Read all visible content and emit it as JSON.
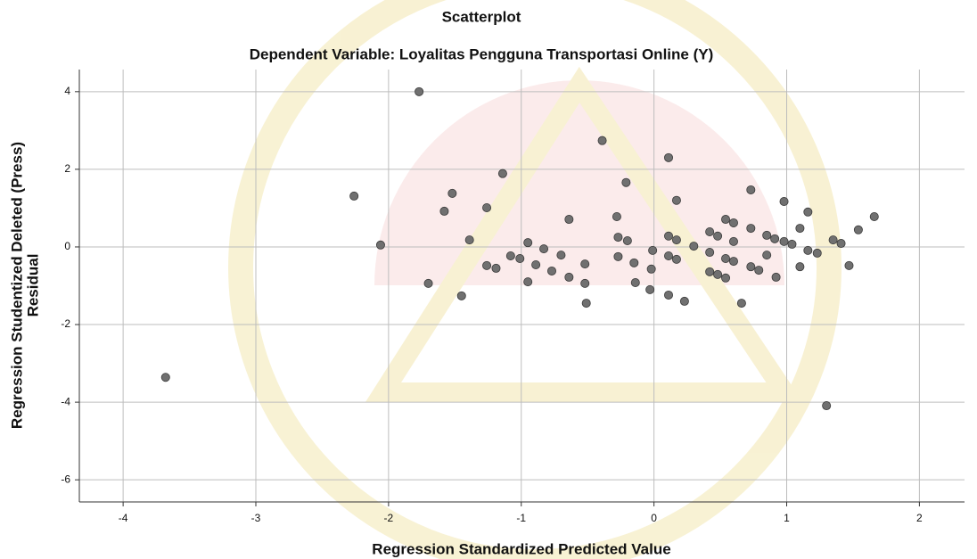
{
  "chart_data": {
    "type": "scatter",
    "title": "Scatterplot",
    "subtitle": "Dependent Variable: Loyalitas Pengguna Transportasi Online (Y)",
    "xlabel": "Regression Standardized Predicted Value",
    "ylabel_lines": [
      "Regression Studentized Deleted (Press)",
      "Residual"
    ],
    "xlim": [
      -4.33,
      2.34
    ],
    "ylim": [
      -6.57,
      4.57
    ],
    "xticks": [
      -4,
      -3,
      -2,
      -1,
      0,
      1,
      2
    ],
    "yticks": [
      4,
      2,
      0,
      -2,
      -4,
      -6
    ],
    "grid": true,
    "color": "#707070",
    "x": [
      -1.77,
      -3.68,
      -2.26,
      -2.06,
      -1.7,
      -1.58,
      -1.52,
      -1.45,
      -1.39,
      -1.26,
      -1.26,
      -1.19,
      -1.14,
      -1.08,
      -1.01,
      -0.95,
      -0.95,
      -0.89,
      -0.83,
      -0.77,
      -0.7,
      -0.64,
      -0.64,
      -0.52,
      -0.52,
      -0.51,
      -0.39,
      -0.28,
      -0.27,
      -0.27,
      -0.21,
      -0.2,
      -0.15,
      -0.14,
      -0.03,
      -0.02,
      -0.01,
      0.11,
      0.11,
      0.11,
      0.11,
      0.17,
      0.17,
      0.17,
      0.23,
      0.3,
      0.42,
      0.42,
      0.42,
      0.48,
      0.48,
      0.54,
      0.54,
      0.54,
      0.6,
      0.6,
      0.6,
      0.66,
      0.73,
      0.73,
      0.73,
      0.79,
      0.85,
      0.85,
      0.91,
      0.92,
      0.98,
      0.98,
      1.04,
      1.1,
      1.1,
      1.16,
      1.16,
      1.23,
      1.3,
      1.35,
      1.41,
      1.47,
      1.54,
      1.66
    ],
    "values": [
      4.0,
      -3.36,
      1.31,
      0.05,
      -0.94,
      0.92,
      1.38,
      -1.26,
      0.18,
      1.01,
      -0.48,
      -0.55,
      1.89,
      -0.23,
      -0.3,
      0.11,
      -0.9,
      -0.46,
      -0.05,
      -0.62,
      -0.21,
      -0.78,
      0.71,
      -0.44,
      -0.94,
      -1.45,
      2.74,
      0.78,
      0.25,
      -0.25,
      1.66,
      0.16,
      -0.41,
      -0.92,
      -1.1,
      -0.57,
      -0.09,
      2.3,
      -0.23,
      0.28,
      -1.24,
      1.2,
      0.18,
      -0.32,
      -1.4,
      0.02,
      0.39,
      -0.14,
      -0.64,
      0.28,
      -0.71,
      0.71,
      -0.3,
      -0.8,
      0.62,
      -0.37,
      0.14,
      -1.45,
      1.47,
      0.48,
      -0.51,
      -0.6,
      0.3,
      -0.21,
      0.21,
      -0.78,
      1.17,
      0.14,
      0.07,
      0.48,
      -0.51,
      0.9,
      -0.09,
      -0.16,
      -4.09,
      0.18,
      0.09,
      -0.48,
      0.44,
      0.78
    ]
  }
}
